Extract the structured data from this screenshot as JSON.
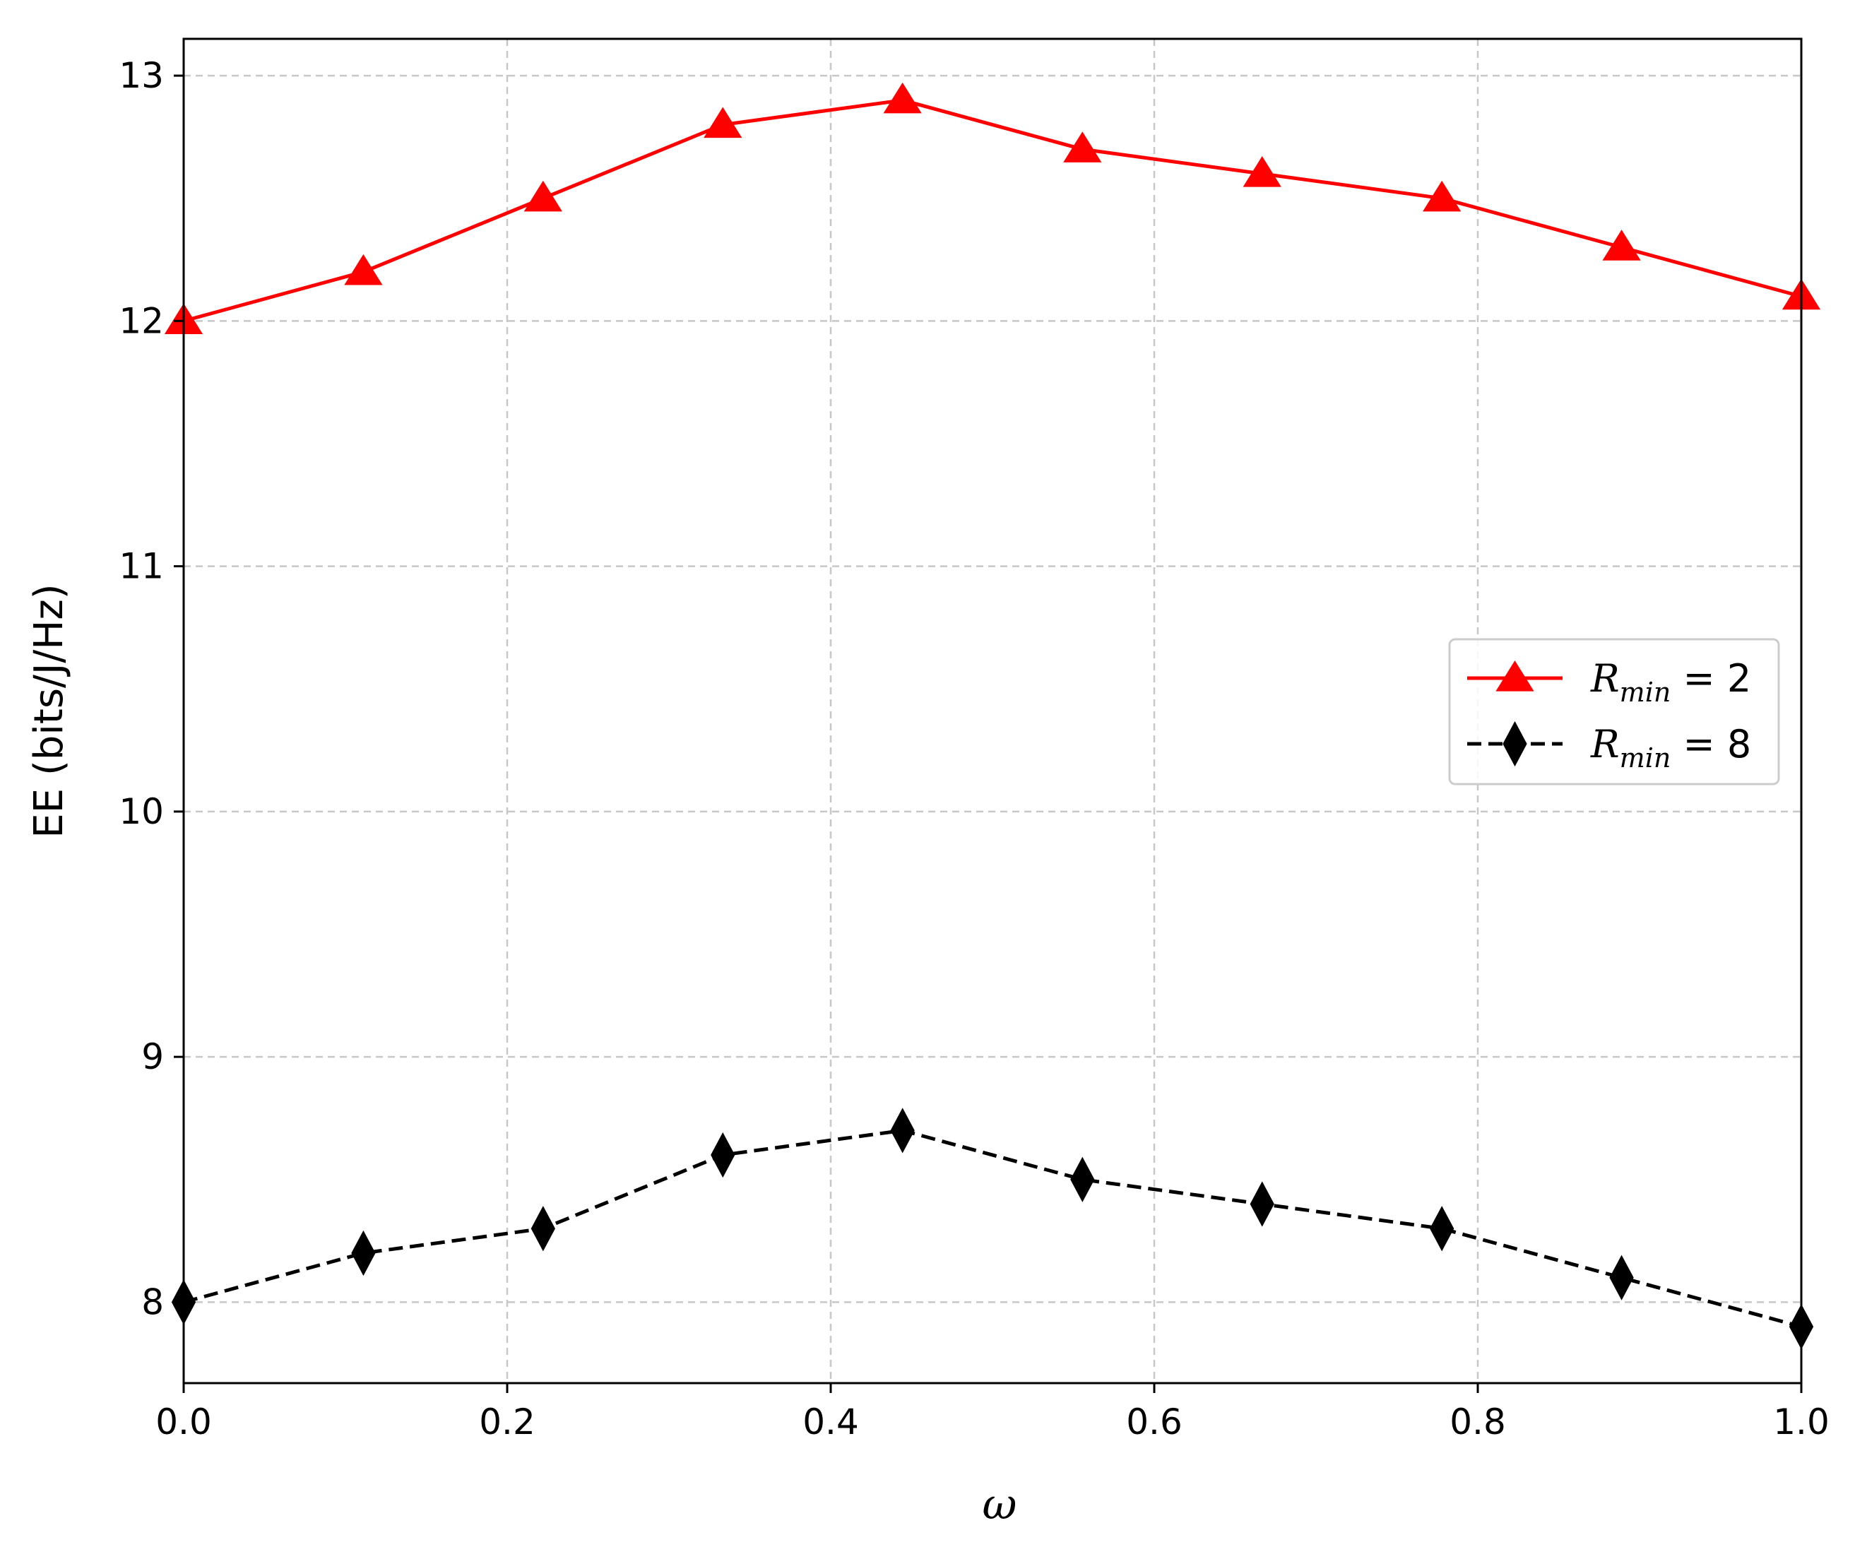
{
  "chart_data": {
    "type": "line",
    "title": "",
    "xlabel": "ω",
    "ylabel": "EE (bits/J/Hz)",
    "xlim": [
      0.0,
      1.0
    ],
    "ylim": [
      7.67,
      13.15
    ],
    "xticks": [
      "0.0",
      "0.2",
      "0.4",
      "0.6",
      "0.8",
      "1.0"
    ],
    "yticks": [
      "8",
      "9",
      "10",
      "11",
      "12",
      "13"
    ],
    "grid": true,
    "legend_position": "center-right",
    "series": [
      {
        "name": "R_min = 2",
        "label_main": "R",
        "label_sub": "min",
        "label_rest": " = 2",
        "color": "#ff0000",
        "line_style": "solid",
        "marker": "triangle-up",
        "x": [
          0.0,
          0.1111,
          0.2222,
          0.3333,
          0.4444,
          0.5556,
          0.6667,
          0.7778,
          0.8889,
          1.0
        ],
        "values": [
          12.0,
          12.2,
          12.5,
          12.8,
          12.9,
          12.7,
          12.6,
          12.5,
          12.3,
          12.1
        ]
      },
      {
        "name": "R_min = 8",
        "label_main": "R",
        "label_sub": "min",
        "label_rest": " = 8",
        "color": "#000000",
        "line_style": "dashed",
        "marker": "thin-diamond",
        "x": [
          0.0,
          0.1111,
          0.2222,
          0.3333,
          0.4444,
          0.5556,
          0.6667,
          0.7778,
          0.8889,
          1.0
        ],
        "values": [
          8.0,
          8.2,
          8.3,
          8.6,
          8.7,
          8.5,
          8.4,
          8.3,
          8.1,
          7.9
        ]
      }
    ]
  }
}
